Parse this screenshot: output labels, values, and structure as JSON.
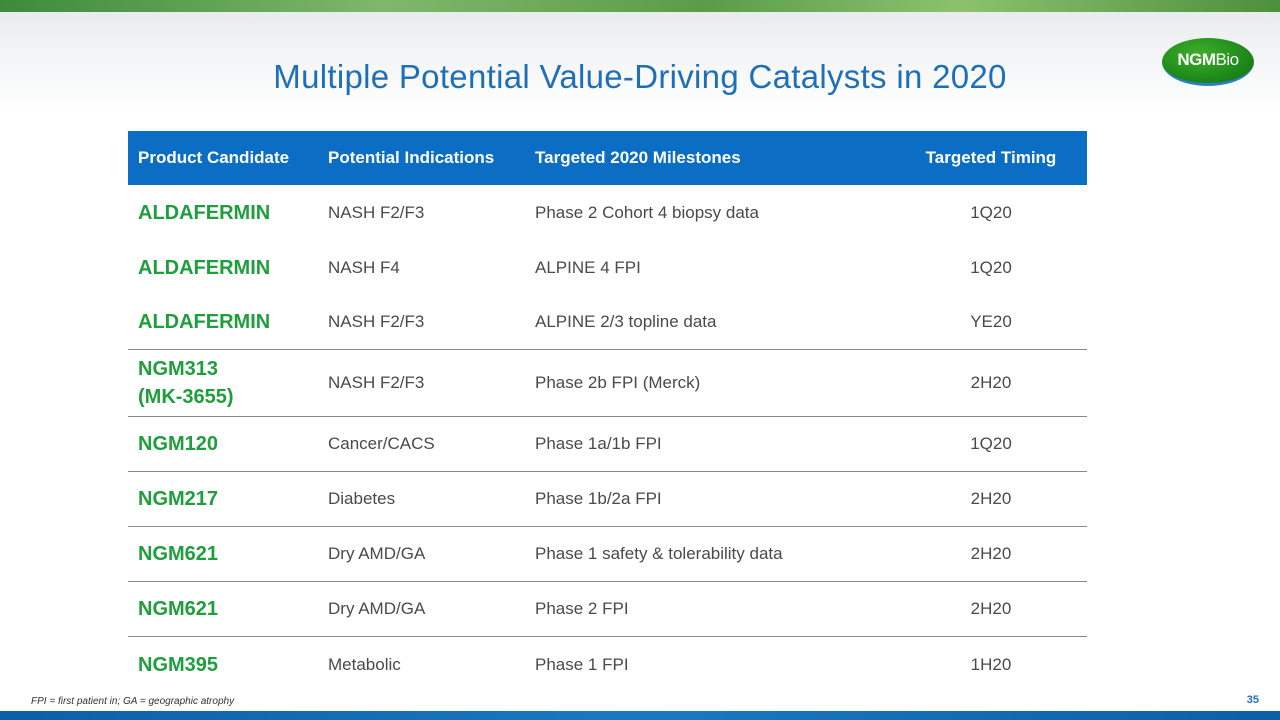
{
  "slide": {
    "title": "Multiple Potential Value-Driving Catalysts in 2020",
    "footnote": "FPI = first patient in; GA = geographic atrophy",
    "page_number": "35"
  },
  "logo": {
    "text_bold": "NGM",
    "text_light": "Bio"
  },
  "table": {
    "headers": [
      "Product  Candidate",
      "Potential  Indications",
      "Targeted  2020 Milestones",
      "Targeted  Timing"
    ],
    "rows": [
      {
        "candidate": "ALDAFERMIN",
        "indication": "NASH F2/F3",
        "milestone": "Phase 2 Cohort 4 biopsy data",
        "timing": "1Q20"
      },
      {
        "candidate": "ALDAFERMIN",
        "indication": "NASH F4",
        "milestone": "ALPINE 4 FPI",
        "timing": "1Q20"
      },
      {
        "candidate": "ALDAFERMIN",
        "indication": "NASH F2/F3",
        "milestone": "ALPINE 2/3 topline data",
        "timing": "YE20"
      },
      {
        "candidate": "NGM313\n(MK-3655)",
        "indication": "NASH F2/F3",
        "milestone": "Phase 2b FPI (Merck)",
        "timing": "2H20"
      },
      {
        "candidate": "NGM120",
        "indication": "Cancer/CACS",
        "milestone": "Phase 1a/1b FPI",
        "timing": "1Q20"
      },
      {
        "candidate": "NGM217",
        "indication": "Diabetes",
        "milestone": "Phase 1b/2a FPI",
        "timing": "2H20"
      },
      {
        "candidate": "NGM621",
        "indication": "Dry AMD/GA",
        "milestone": "Phase 1 safety & tolerability data",
        "timing": "2H20"
      },
      {
        "candidate": "NGM621",
        "indication": "Dry AMD/GA",
        "milestone": "Phase 2 FPI",
        "timing": "2H20"
      },
      {
        "candidate": "NGM395",
        "indication": "Metabolic",
        "milestone": "Phase 1 FPI",
        "timing": "1H20"
      }
    ]
  }
}
